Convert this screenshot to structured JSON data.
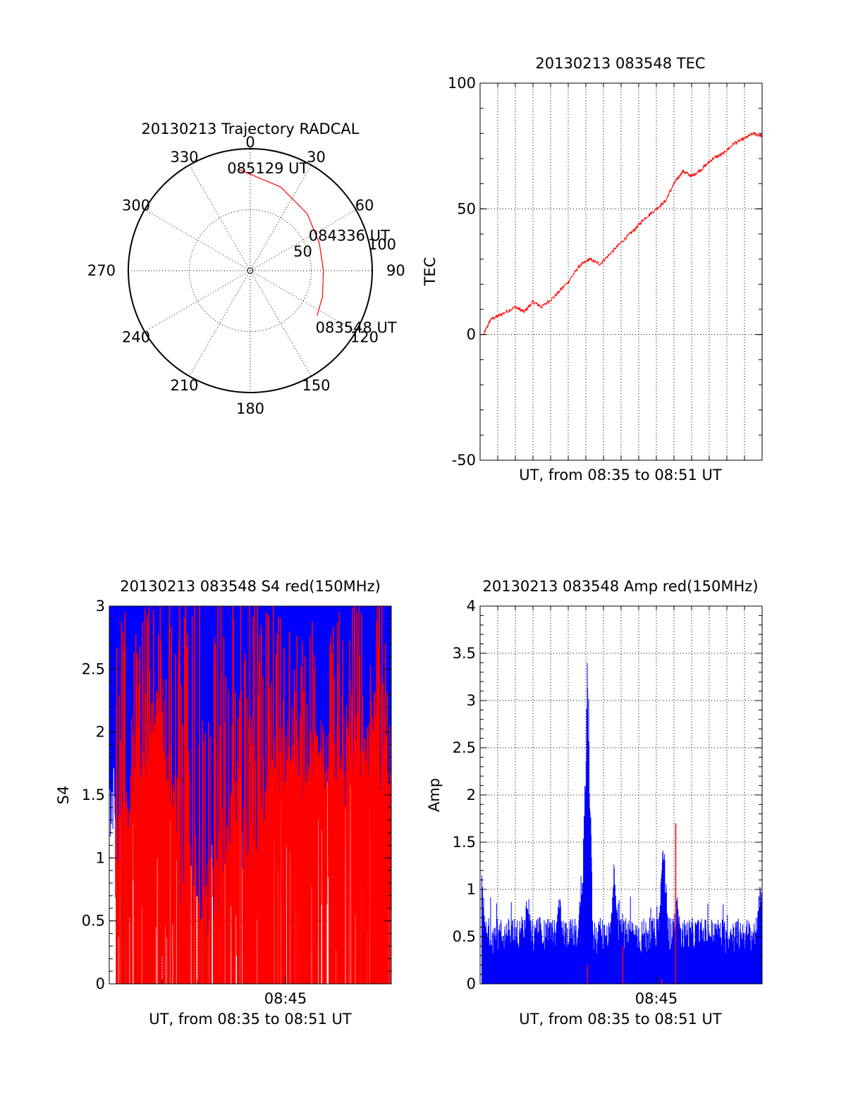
{
  "colors": {
    "red_series": "#ff0000",
    "blue_series": "#0000ff",
    "axis": "#000000",
    "background": "#ffffff"
  },
  "chart_data": [
    {
      "type": "polar",
      "title": "20130213 Trajectory RADCAL",
      "azimuth_labels": [
        "0",
        "30",
        "60",
        "90",
        "120",
        "150",
        "180",
        "210",
        "240",
        "270",
        "300",
        "330"
      ],
      "radial_labels": [
        "50",
        "100"
      ],
      "radial_range": [
        0,
        100
      ],
      "trajectory": {
        "color": "#ff0000",
        "points": [
          {
            "az": 353,
            "r": 84
          },
          {
            "az": 20,
            "r": 73
          },
          {
            "az": 45,
            "r": 66
          },
          {
            "az": 68,
            "r": 61
          },
          {
            "az": 90,
            "r": 60
          },
          {
            "az": 110,
            "r": 63
          },
          {
            "az": 124,
            "r": 66
          }
        ]
      },
      "annotations": [
        {
          "text": "085129 UT",
          "az": 353,
          "r": 84
        },
        {
          "text": "084336 UT",
          "az": 82,
          "r": 60
        },
        {
          "text": "083548 UT",
          "az": 124,
          "r": 66
        }
      ],
      "grid": true
    },
    {
      "type": "line",
      "title": "20130213 083548 TEC",
      "xlabel": "UT, from 08:35 to 08:51 UT",
      "ylabel": "TEC",
      "ylim": [
        -50,
        100
      ],
      "yticks": [
        -50,
        0,
        50,
        100
      ],
      "xlim_minutes": [
        0,
        16
      ],
      "grid": true,
      "series": [
        {
          "color": "#ff0000",
          "x_minutes": [
            0.2,
            0.6,
            1.2,
            2.0,
            2.5,
            3.0,
            3.5,
            4.2,
            5.0,
            5.6,
            6.2,
            6.8,
            7.5,
            8.2,
            8.8,
            9.3,
            10.0,
            10.5,
            11.0,
            11.5,
            12.0,
            12.6,
            13.2,
            13.8,
            14.4,
            15.0,
            15.5,
            16.0
          ],
          "y": [
            0,
            6,
            8,
            11,
            9,
            13,
            11,
            15,
            21,
            27,
            30,
            28,
            33,
            38,
            42,
            46,
            50,
            53,
            60,
            65,
            63,
            66,
            70,
            72,
            76,
            78,
            80,
            79
          ]
        }
      ]
    },
    {
      "type": "line",
      "title": "20130213 083548 S4 red(150MHz)",
      "xlabel": "UT, from 08:35 to 08:51 UT",
      "ylabel": "S4",
      "xtick_labels": [
        "08:45"
      ],
      "ylim": [
        0,
        3
      ],
      "yticks": [
        0,
        0.5,
        1,
        1.5,
        2,
        2.5,
        3
      ],
      "yticks_text": [
        "0",
        "0.5",
        "1",
        "1.5",
        "2",
        "2.5",
        "3"
      ],
      "xlim_minutes": [
        0,
        16
      ],
      "grid": true,
      "series": [
        {
          "color": "#ff0000",
          "note": "dense oscillation between 0 and 3, starting ~0.3 min"
        },
        {
          "color": "#0000ff",
          "envelope_x_minutes": [
            0,
            1,
            2,
            3,
            4,
            5,
            6,
            7,
            8,
            9,
            10,
            11,
            12,
            13,
            14,
            15,
            16
          ],
          "envelope_low": [
            1.0,
            1.2,
            1.6,
            1.9,
            0.7,
            0.5,
            0.4,
            1.3,
            0.6,
            1.5,
            1.5,
            1.4,
            1.6,
            1.5,
            1.6,
            1.7,
            1.1
          ]
        }
      ]
    },
    {
      "type": "bar",
      "title": "20130213 083548 Amp red(150MHz)",
      "xlabel": "UT, from 08:35 to 08:51 UT",
      "ylabel": "Amp",
      "xtick_labels": [
        "08:45"
      ],
      "ylim": [
        0,
        4
      ],
      "yticks": [
        0,
        0.5,
        1,
        1.5,
        2,
        2.5,
        3,
        3.5,
        4
      ],
      "yticks_text": [
        "0",
        "0.5",
        "1",
        "1.5",
        "2",
        "2.5",
        "3",
        "3.5",
        "4"
      ],
      "xlim_minutes": [
        0,
        16
      ],
      "grid": true,
      "series": [
        {
          "color": "#0000ff",
          "peaks": [
            {
              "x_minutes": 0.1,
              "value": 1.2
            },
            {
              "x_minutes": 2.7,
              "value": 1.1
            },
            {
              "x_minutes": 3.4,
              "value": 0.8
            },
            {
              "x_minutes": 4.5,
              "value": 1.0
            },
            {
              "x_minutes": 5.8,
              "value": 1.4
            },
            {
              "x_minutes": 6.1,
              "value": 3.55
            },
            {
              "x_minutes": 7.6,
              "value": 1.3
            },
            {
              "x_minutes": 10.4,
              "value": 1.7
            },
            {
              "x_minutes": 11.2,
              "value": 1.0
            },
            {
              "x_minutes": 15.9,
              "value": 1.15
            }
          ],
          "baseline_range": [
            0.3,
            0.7
          ]
        },
        {
          "color": "#ff0000",
          "peaks": [
            {
              "x_minutes": 6.1,
              "value": 0.2
            },
            {
              "x_minutes": 8.1,
              "value": 0.4
            },
            {
              "x_minutes": 10.3,
              "value": 0.05
            },
            {
              "x_minutes": 11.1,
              "value": 1.7
            }
          ]
        }
      ]
    }
  ]
}
